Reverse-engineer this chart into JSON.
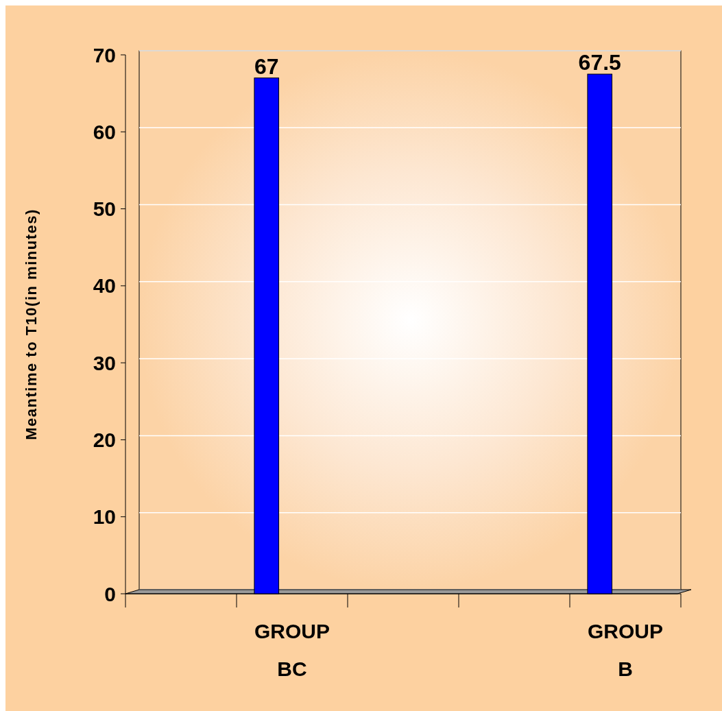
{
  "chart_data": {
    "type": "bar",
    "ylabel": "Meantime to T10(in minutes)",
    "categories": [
      null,
      "GROUP BC",
      null,
      null,
      "GROUP B"
    ],
    "values": [
      null,
      67,
      null,
      null,
      67.5
    ],
    "color": "#0000ff",
    "ylim": [
      0,
      70
    ],
    "yticks": [
      0,
      10,
      20,
      30,
      40,
      50,
      60,
      70
    ],
    "grid": "y",
    "data_labels": true
  }
}
